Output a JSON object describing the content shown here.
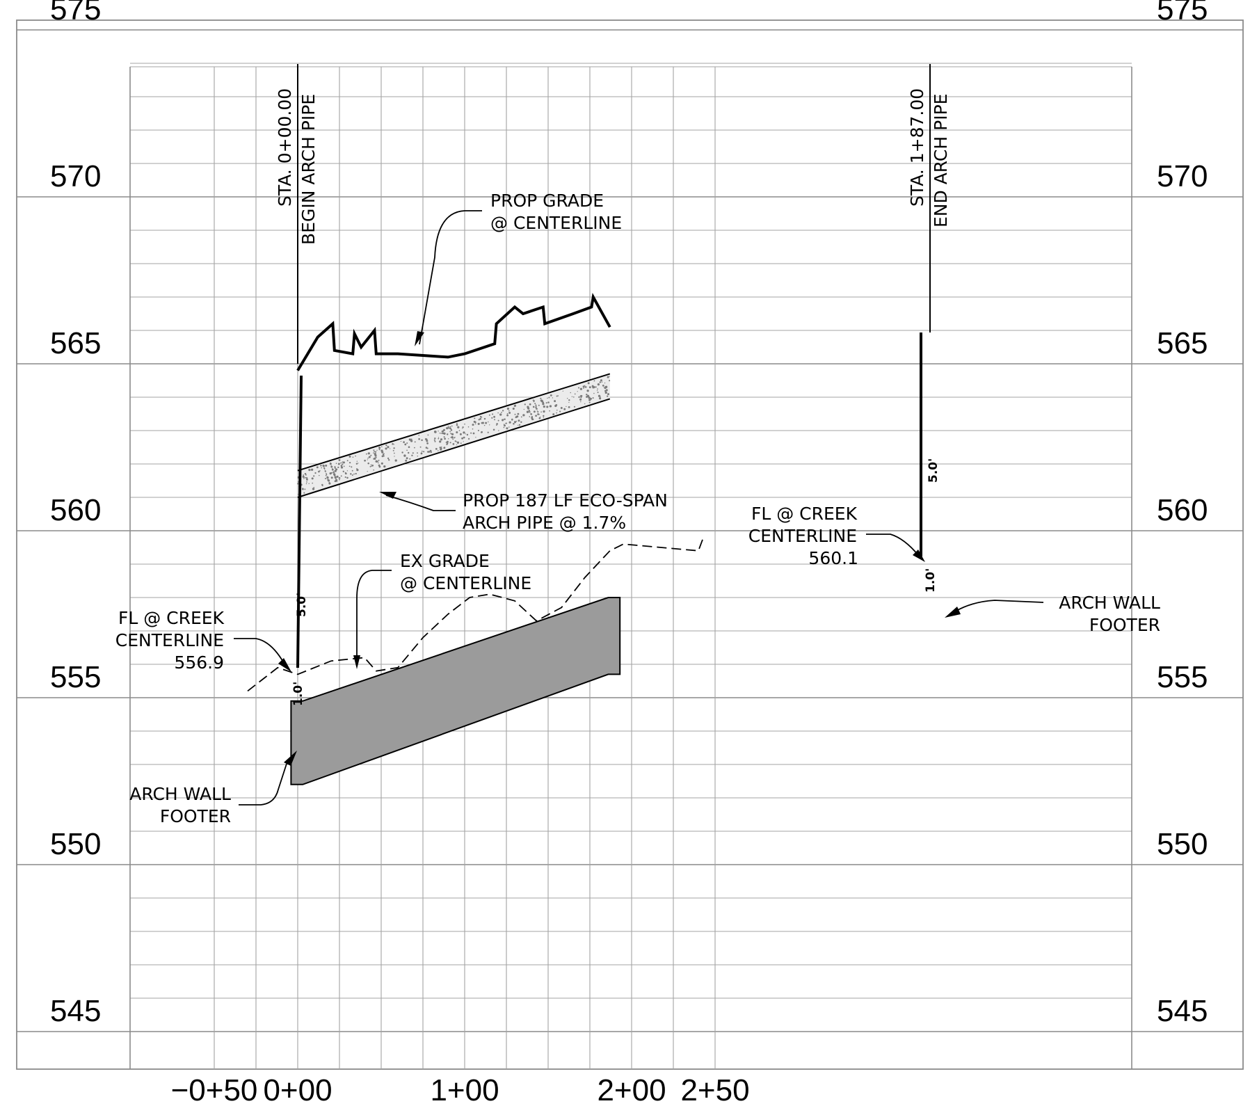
{
  "elevation_labels": [
    "575",
    "570",
    "565",
    "560",
    "555",
    "550",
    "545"
  ],
  "station_labels": [
    "−0+50",
    "0+00",
    "1+00",
    "2+00",
    "2+50"
  ],
  "profile": {
    "elevations": [
      575,
      570,
      565,
      560,
      555,
      550,
      545
    ],
    "stations": [
      -50,
      0,
      100,
      200,
      250
    ],
    "proposed_grade": [
      [
        0,
        564.8
      ],
      [
        12,
        565.8
      ],
      [
        21,
        566.2
      ],
      [
        22,
        565.4
      ],
      [
        33,
        565.3
      ],
      [
        34,
        565.9
      ],
      [
        38,
        565.5
      ],
      [
        46,
        566.0
      ],
      [
        47,
        565.3
      ],
      [
        60,
        565.3
      ],
      [
        75,
        565.25
      ],
      [
        90,
        565.2
      ],
      [
        100,
        565.3
      ],
      [
        118,
        565.6
      ],
      [
        119,
        566.2
      ],
      [
        130,
        566.7
      ],
      [
        135,
        566.5
      ],
      [
        147,
        566.7
      ],
      [
        148,
        566.2
      ],
      [
        165,
        566.5
      ],
      [
        176,
        566.7
      ],
      [
        177,
        567.0
      ],
      [
        187,
        566.1
      ]
    ],
    "existing_grade": [
      [
        -30,
        555.2
      ],
      [
        -12,
        555.9
      ],
      [
        0,
        555.7
      ],
      [
        20,
        556.1
      ],
      [
        40,
        556.2
      ],
      [
        47,
        555.8
      ],
      [
        60,
        555.9
      ],
      [
        75,
        556.8
      ],
      [
        90,
        557.5
      ],
      [
        103,
        558.0
      ],
      [
        115,
        558.1
      ],
      [
        130,
        557.9
      ],
      [
        143,
        557.3
      ],
      [
        158,
        557.7
      ],
      [
        172,
        558.6
      ],
      [
        187,
        559.4
      ],
      [
        195,
        559.6
      ],
      [
        240,
        559.4
      ],
      [
        243,
        559.8
      ]
    ],
    "arch_pipe": {
      "start_station": 0,
      "end_station": 187,
      "top_start": 561.8,
      "bottom_start": 561.0,
      "top_end": 564.7,
      "bottom_end": 563.95
    },
    "footer": {
      "start_station": -4,
      "end_station": 193,
      "top_start": 554.9,
      "bottom_start": 552.4,
      "top_end": 558.0,
      "bottom_end": 555.7
    }
  },
  "stations": {
    "begin": {
      "line1": "STA. 0+00.00",
      "line2": "BEGIN ARCH PIPE"
    },
    "end": {
      "line1": "STA. 1+87.00",
      "line2": "END ARCH PIPE"
    }
  },
  "annotations": {
    "prop_grade": [
      "PROP GRADE",
      "@ CENTERLINE"
    ],
    "arch_pipe": [
      "PROP 187 LF ECO-SPAN",
      "ARCH PIPE @ 1.7%"
    ],
    "ex_grade": [
      "EX GRADE",
      "@ CENTERLINE"
    ],
    "fl_right": [
      "FL @ CREEK",
      "CENTERLINE",
      "560.1"
    ],
    "fl_left": [
      "FL @ CREEK",
      "CENTERLINE",
      "556.9"
    ],
    "footer_right": [
      "ARCH WALL",
      "FOOTER"
    ],
    "footer_left": [
      "ARCH WALL",
      "FOOTER"
    ]
  },
  "dimensions": {
    "left_cover": "5.0'",
    "left_footer": "1.0'",
    "right_cover": "5.0'",
    "right_footer": "1.0'"
  }
}
